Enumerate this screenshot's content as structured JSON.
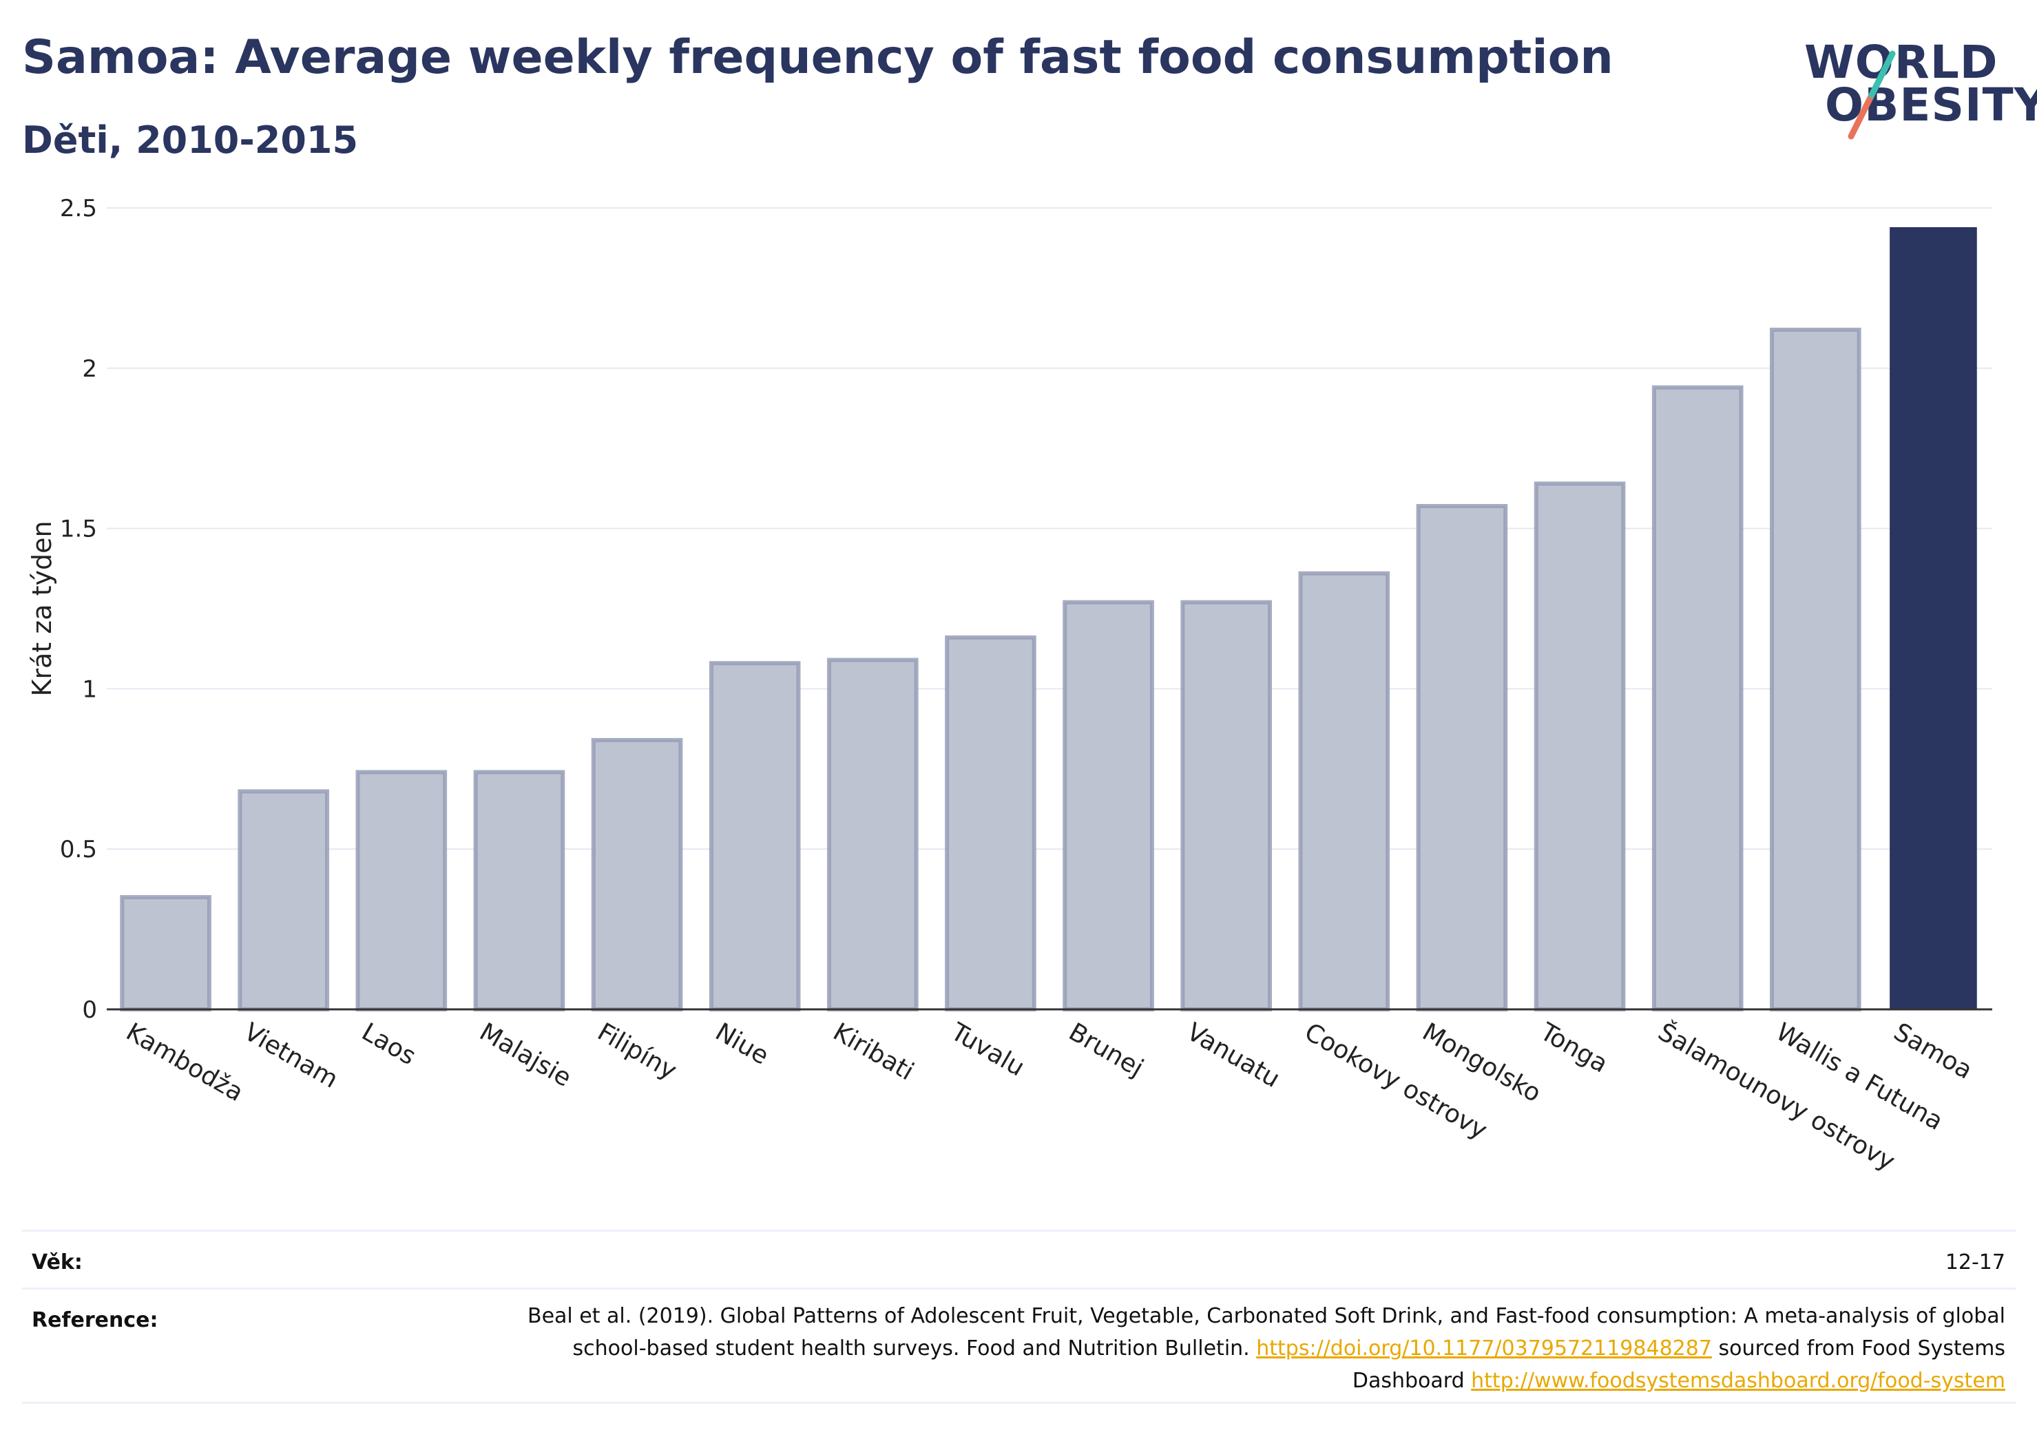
{
  "header": {
    "title": "Samoa: Average weekly frequency of fast food consumption",
    "subtitle": "Děti, 2010-2015"
  },
  "logo": {
    "line1": "WORLD",
    "line2": "OBESITY"
  },
  "chart_data": {
    "type": "bar",
    "ylabel": "Krát za týden",
    "ylim": [
      0,
      2.5
    ],
    "yticks": [
      0,
      0.5,
      1,
      1.5,
      2,
      2.5
    ],
    "ytick_labels": [
      "0",
      "0.5",
      "1",
      "1.5",
      "2",
      "2.5"
    ],
    "categories": [
      "Kambodža",
      "Vietnam",
      "Laos",
      "Malajsie",
      "Filipíny",
      "Niue",
      "Kiribati",
      "Tuvalu",
      "Brunej",
      "Vanuatu",
      "Cookovy ostrovy",
      "Mongolsko",
      "Tonga",
      "Šalamounovy ostrovy",
      "Wallis a Futuna",
      "Samoa"
    ],
    "values": [
      0.35,
      0.68,
      0.74,
      0.74,
      0.84,
      1.08,
      1.09,
      1.16,
      1.27,
      1.27,
      1.36,
      1.57,
      1.64,
      1.94,
      2.12,
      2.44
    ],
    "highlight": "Samoa",
    "colors": {
      "bar": "#bec3d1",
      "bar_stroke": "#969db6",
      "highlight": "#2a3560",
      "grid": "#e6e9f1"
    },
    "grid": true
  },
  "meta": {
    "age_label": "Věk:",
    "age_value": "12-17",
    "reference_label": "Reference:",
    "reference_text1": "Beal et al. (2019). Global Patterns of Adolescent Fruit, Vegetable, Carbonated Soft Drink, and Fast-food consumption: A meta-analysis of global school-based student health surveys. Food and Nutrition Bulletin. ",
    "reference_link1": "https://doi.org/10.1177/0379572119848287",
    "reference_text2": " sourced from Food Systems Dashboard ",
    "reference_link2": "http://www.foodsystemsdashboard.org/food-system"
  }
}
